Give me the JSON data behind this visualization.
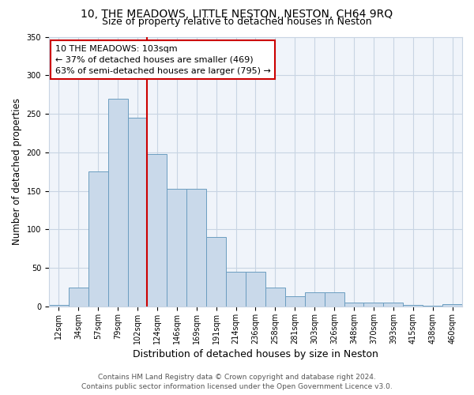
{
  "title1": "10, THE MEADOWS, LITTLE NESTON, NESTON, CH64 9RQ",
  "title2": "Size of property relative to detached houses in Neston",
  "xlabel": "Distribution of detached houses by size in Neston",
  "ylabel": "Number of detached properties",
  "bar_labels": [
    "12sqm",
    "34sqm",
    "57sqm",
    "79sqm",
    "102sqm",
    "124sqm",
    "146sqm",
    "169sqm",
    "191sqm",
    "214sqm",
    "236sqm",
    "258sqm",
    "281sqm",
    "303sqm",
    "326sqm",
    "348sqm",
    "370sqm",
    "393sqm",
    "415sqm",
    "438sqm",
    "460sqm"
  ],
  "bar_values": [
    2,
    25,
    175,
    270,
    245,
    198,
    153,
    153,
    90,
    45,
    45,
    25,
    13,
    18,
    18,
    5,
    5,
    5,
    2,
    1,
    3
  ],
  "bar_color": "#c9d9ea",
  "bar_edge_color": "#6b9dc0",
  "vline_x": 4.5,
  "vline_color": "#cc0000",
  "annotation_text": "10 THE MEADOWS: 103sqm\n← 37% of detached houses are smaller (469)\n63% of semi-detached houses are larger (795) →",
  "annotation_box_color": "#ffffff",
  "annotation_box_edge": "#cc0000",
  "ylim": [
    0,
    350
  ],
  "yticks": [
    0,
    50,
    100,
    150,
    200,
    250,
    300,
    350
  ],
  "grid_color": "#c8d4e3",
  "footer1": "Contains HM Land Registry data © Crown copyright and database right 2024.",
  "footer2": "Contains public sector information licensed under the Open Government Licence v3.0.",
  "title1_fontsize": 10,
  "title2_fontsize": 9,
  "xlabel_fontsize": 9,
  "ylabel_fontsize": 8.5,
  "tick_fontsize": 7,
  "annotation_fontsize": 8,
  "footer_fontsize": 6.5,
  "fig_width": 6.0,
  "fig_height": 5.0,
  "fig_dpi": 100
}
